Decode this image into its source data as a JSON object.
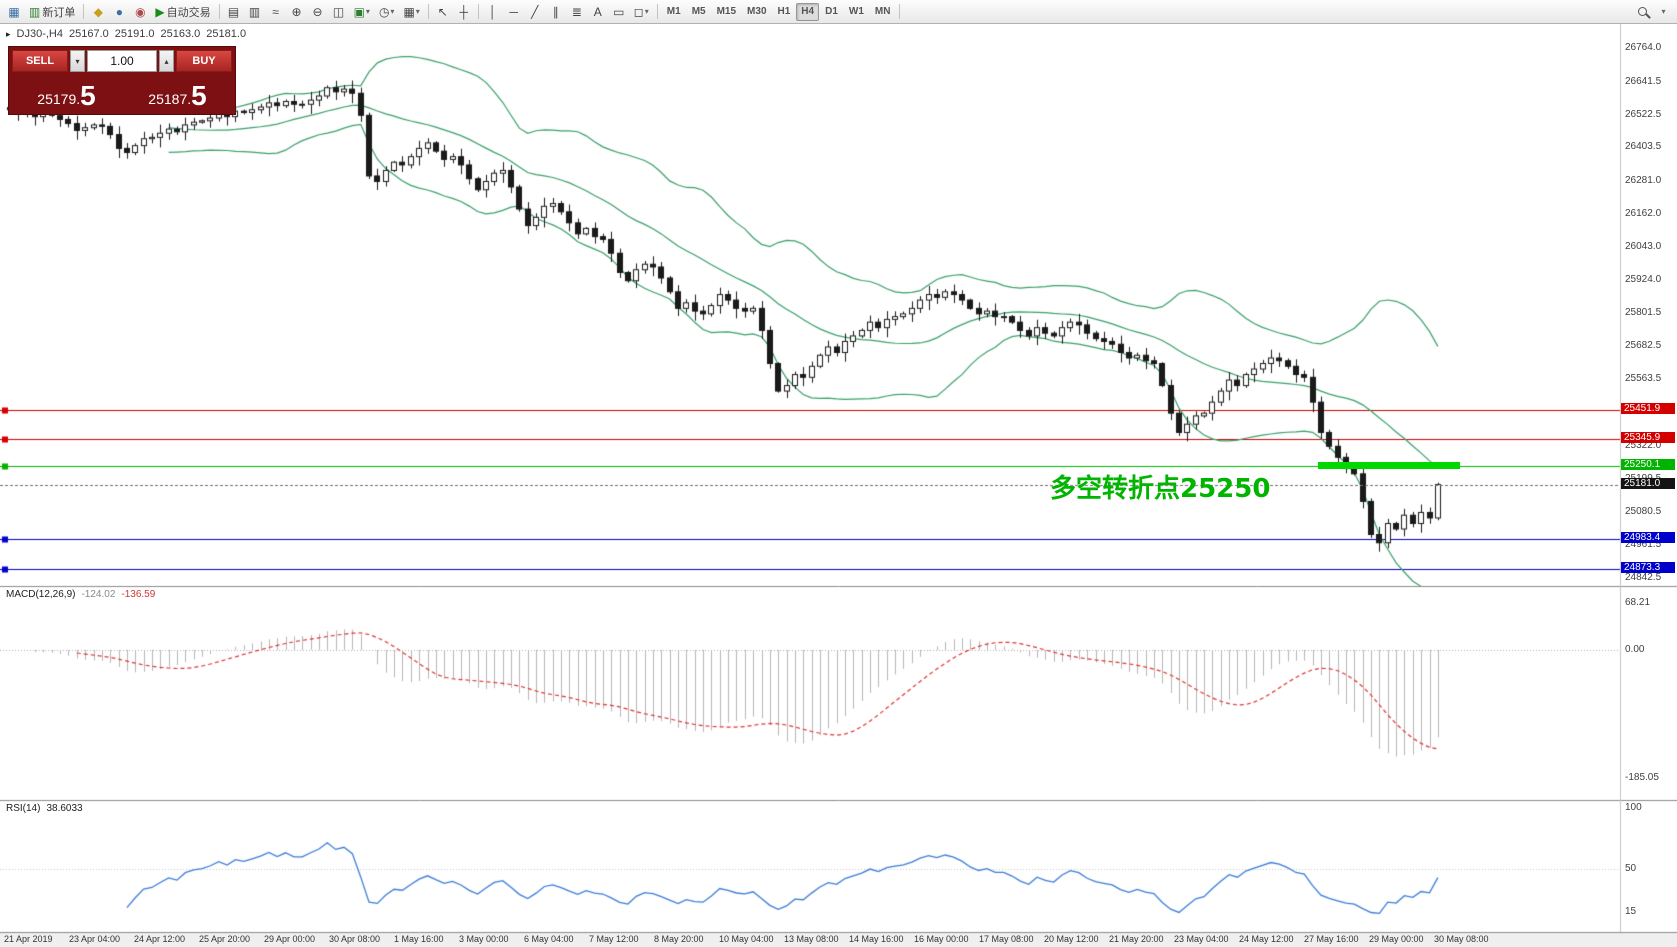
{
  "toolbar": {
    "new_order_label": "新订单",
    "autotrade_label": "自动交易",
    "timeframes": [
      "M1",
      "M5",
      "M15",
      "M30",
      "H1",
      "H4",
      "D1",
      "W1",
      "MN"
    ],
    "active_timeframe": "H4"
  },
  "chart": {
    "header": {
      "symbol_tf": "DJ30-,H4",
      "open": "25167.0",
      "high": "25191.0",
      "low": "25163.0",
      "close": "25181.0"
    },
    "annotation": "多空转折点25250",
    "current_price": 25181.0,
    "price_axis": [
      26764.0,
      26641.5,
      26522.5,
      26403.5,
      26281.0,
      26162.0,
      26043.0,
      25924.0,
      25801.5,
      25682.5,
      25563.5,
      25444.5,
      25322.0,
      25199.5,
      25080.5,
      24961.5,
      24842.5
    ]
  },
  "trade": {
    "sell_label": "SELL",
    "buy_label": "BUY",
    "volume": "1.00",
    "sell_price": "25179.5",
    "buy_price": "25187.5",
    "sell_main": "25179.",
    "sell_big": "5",
    "buy_main": "25187.",
    "buy_big": "5"
  },
  "macd": {
    "name": "MACD(12,26,9)",
    "main": "-124.02",
    "signal": "-136.59",
    "axis": [
      {
        "value": 68.21,
        "label": "68.21"
      },
      {
        "value": 0,
        "label": "0.00"
      },
      {
        "value": -185.05,
        "label": "-185.05"
      }
    ]
  },
  "rsi": {
    "name": "RSI(14)",
    "value": "38.6033",
    "axis": [
      {
        "value": 100,
        "label": "100"
      },
      {
        "value": 50,
        "label": "50"
      },
      {
        "value": 15,
        "label": "15"
      }
    ]
  },
  "time_axis": [
    "21 Apr 2019",
    "23 Apr 04:00",
    "24 Apr 12:00",
    "25 Apr 20:00",
    "29 Apr 00:00",
    "30 Apr 08:00",
    "1 May 16:00",
    "3 May 00:00",
    "6 May 04:00",
    "7 May 12:00",
    "8 May 20:00",
    "10 May 04:00",
    "13 May 08:00",
    "14 May 16:00",
    "16 May 00:00",
    "17 May 08:00",
    "20 May 12:00",
    "21 May 20:00",
    "23 May 04:00",
    "24 May 12:00",
    "27 May 16:00",
    "29 May 00:00",
    "30 May 08:00"
  ],
  "chart_data": {
    "type": "candlestick",
    "symbol": "DJ30-",
    "timeframe": "H4",
    "last_candle": {
      "open": 25167.0,
      "high": 25191.0,
      "low": 25163.0,
      "close": 25181.0
    },
    "price_range_visible": [
      24842.5,
      26764.0
    ],
    "closes": [
      26540,
      26525,
      26535,
      26515,
      26530,
      26520,
      26505,
      26490,
      26465,
      26475,
      26485,
      26480,
      26450,
      26400,
      26385,
      26410,
      26435,
      26440,
      26455,
      26470,
      26460,
      26485,
      26495,
      26500,
      26510,
      26525,
      26515,
      26535,
      26530,
      26540,
      26550,
      26565,
      26555,
      26570,
      26560,
      26560,
      26575,
      26590,
      26620,
      26605,
      26615,
      26600,
      26520,
      26300,
      26280,
      26320,
      26350,
      26340,
      26370,
      26400,
      26420,
      26390,
      26360,
      26370,
      26340,
      26290,
      26250,
      26280,
      26310,
      26320,
      26260,
      26180,
      26120,
      26150,
      26190,
      26200,
      26170,
      26130,
      26090,
      26110,
      26080,
      26070,
      26020,
      25950,
      25920,
      25960,
      25980,
      25970,
      25930,
      25880,
      25820,
      25840,
      25810,
      25800,
      25830,
      25870,
      25850,
      25820,
      25810,
      25820,
      25740,
      25620,
      25520,
      25540,
      25580,
      25570,
      25610,
      25650,
      25680,
      25660,
      25700,
      25720,
      25740,
      25770,
      25750,
      25780,
      25790,
      25800,
      25820,
      25850,
      25870,
      25860,
      25880,
      25870,
      25850,
      25820,
      25800,
      25810,
      25790,
      25790,
      25770,
      25740,
      25720,
      25750,
      25730,
      25720,
      25750,
      25770,
      25760,
      25730,
      25710,
      25700,
      25690,
      25660,
      25640,
      25650,
      25630,
      25620,
      25540,
      25440,
      25370,
      25400,
      25430,
      25440,
      25480,
      25520,
      25560,
      25540,
      25580,
      25600,
      25620,
      25640,
      25630,
      25610,
      25580,
      25570,
      25480,
      25370,
      25320,
      25280,
      25240,
      25220,
      25120,
      25000,
      24970,
      25040,
      25020,
      25070,
      25040,
      25080,
      25060,
      25181
    ],
    "levels": [
      {
        "price": 25451.9,
        "color": "#d40000"
      },
      {
        "price": 25345.9,
        "color": "#d40000"
      },
      {
        "price": 25250.1,
        "color": "#00b400"
      },
      {
        "price": 24983.4,
        "color": "#0000cc"
      },
      {
        "price": 24873.3,
        "color": "#0000cc"
      }
    ],
    "highlight": {
      "price": 25250.1,
      "color": "#00d800"
    },
    "bollinger": {
      "period": 20,
      "deviation": 2,
      "color": "#3aa06a"
    },
    "macd_display": {
      "current_main": -124.02,
      "current_signal": -136.59,
      "scale_max": 68.21,
      "scale_min": -185.05
    },
    "rsi_display": {
      "current": 38.6033
    }
  }
}
